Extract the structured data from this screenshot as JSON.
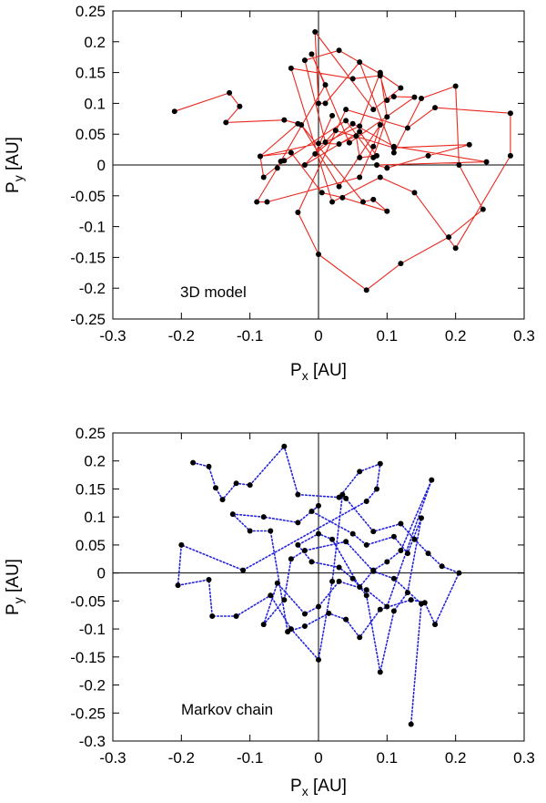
{
  "chart_data": [
    {
      "type": "line",
      "annotation": "3D model",
      "xlabel_main": "P",
      "xlabel_sub": "x",
      "xlabel_unit": " [AU]",
      "ylabel_main": "P",
      "ylabel_sub": "y",
      "ylabel_unit": " [AU]",
      "xlim": [
        -0.3,
        0.3
      ],
      "ylim": [
        -0.25,
        0.25
      ],
      "xticks": [
        "-0.3",
        "-0.2",
        "-0.1",
        "0",
        "0.1",
        "0.2",
        "0.3"
      ],
      "yticks": [
        "-0.25",
        "-0.2",
        "-0.15",
        "-0.1",
        "-0.05",
        "0",
        "0.05",
        "0.1",
        "0.15",
        "0.2",
        "0.25"
      ],
      "series": [
        {
          "name": "3D model",
          "line_color": "#e8281e",
          "line_style": "solid",
          "marker_color": "#000000",
          "x": [
            -0.21,
            -0.13,
            -0.115,
            -0.135,
            -0.05,
            -0.03,
            -0.085,
            -0.08,
            -0.05,
            0.04,
            0.08,
            0.1,
            0.09,
            0.06,
            0.01,
            -0.02,
            0.03,
            0.09,
            0.12,
            0.08,
            -0.005,
            0.0,
            0.01,
            0.06,
            0.11,
            0.15,
            0.2,
            0.205,
            0.24,
            0.19,
            0.12,
            0.07,
            0.0,
            -0.03,
            0.04,
            0.13,
            0.17,
            0.28,
            0.28,
            0.2,
            0.14,
            0.09,
            0.02,
            -0.04,
            0.05,
            0.09,
            0.1,
            0.11,
            0.14,
            0.045,
            -0.01,
            0.01,
            -0.055,
            -0.06,
            -0.09,
            -0.075,
            0.06,
            0.08,
            0.09,
            0.03,
            -0.025,
            0.065,
            0.08,
            0.1,
            0.035,
            0.005,
            -0.04,
            -0.085,
            0.0,
            0.03,
            0.055,
            0.06,
            0.085,
            0.06,
            -0.02,
            0.025,
            0.11,
            0.22,
            0.16,
            0.1,
            0.085,
            0.245,
            0.11,
            0.05,
            -0.005,
            0.02
          ],
          "y": [
            0.087,
            0.117,
            0.095,
            0.069,
            0.073,
            0.067,
            0.014,
            -0.02,
            0.007,
            0.072,
            0.012,
            0.078,
            0.15,
            0.063,
            0.037,
            0.17,
            0.186,
            0.148,
            0.125,
            0.09,
            0.216,
            0.1,
            0.1,
            0.167,
            0.02,
            0.108,
            0.128,
            0.0,
            -0.072,
            -0.117,
            -0.16,
            -0.203,
            -0.145,
            -0.077,
            0.09,
            0.06,
            0.093,
            0.084,
            0.015,
            -0.135,
            -0.045,
            -0.02,
            -0.06,
            0.157,
            0.14,
            0.145,
            0.105,
            0.111,
            0.11,
            0.036,
            0.18,
            0.13,
            0.006,
            -0.005,
            -0.06,
            -0.06,
            -0.02,
            0.03,
            0.065,
            -0.035,
            0.065,
            -0.06,
            -0.056,
            -0.075,
            -0.053,
            -0.045,
            0.02,
            0.014,
            0.035,
            0.034,
            0.047,
            0.012,
            0.015,
            0.054,
            0.0,
            0.056,
            0.028,
            0.033,
            0.015,
            -0.005,
            0.0,
            0.005,
            0.03,
            0.067,
            0.018,
            0.08
          ]
        }
      ]
    },
    {
      "type": "line",
      "annotation": "Markov chain",
      "xlabel_main": "P",
      "xlabel_sub": "x",
      "xlabel_unit": " [AU]",
      "ylabel_main": "P",
      "ylabel_sub": "y",
      "ylabel_unit": " [AU]",
      "xlim": [
        -0.3,
        0.3
      ],
      "ylim": [
        -0.3,
        0.25
      ],
      "xticks": [
        "-0.3",
        "-0.2",
        "-0.1",
        "0",
        "0.1",
        "0.2",
        "0.3"
      ],
      "yticks": [
        "-0.3",
        "-0.25",
        "-0.2",
        "-0.15",
        "-0.1",
        "-0.05",
        "0",
        "0.05",
        "0.1",
        "0.15",
        "0.2",
        "0.25"
      ],
      "series": [
        {
          "name": "Markov chain",
          "line_color": "#2222dd",
          "line_style": "dotted",
          "marker_color": "#000000",
          "x": [
            -0.183,
            -0.16,
            -0.15,
            -0.14,
            -0.12,
            -0.1,
            -0.05,
            -0.03,
            0.03,
            0.06,
            0.09,
            0.085,
            0.07,
            -0.11,
            -0.2,
            -0.205,
            -0.16,
            -0.155,
            -0.12,
            -0.07,
            -0.04,
            0.0,
            0.02,
            0.035,
            0.04,
            0.08,
            0.12,
            0.14,
            0.16,
            0.18,
            0.205,
            0.17,
            0.155,
            0.135,
            0.09,
            0.06,
            0.04,
            0.015,
            -0.02,
            -0.045,
            -0.07,
            -0.1,
            -0.125,
            -0.08,
            -0.03,
            0.0,
            -0.01,
            0.05,
            0.07,
            0.11,
            0.13,
            0.15,
            0.13,
            0.11,
            0.09,
            0.07,
            0.05,
            0.03,
            -0.01,
            -0.03,
            0.0,
            0.02,
            0.06,
            0.08,
            0.1,
            0.12,
            0.165,
            0.1,
            0.07,
            0.03,
            0.0,
            -0.02,
            -0.06,
            -0.08,
            -0.05,
            -0.04,
            -0.02,
            0.04,
            0.08,
            0.11,
            0.15,
            0.135
          ],
          "y": [
            0.197,
            0.19,
            0.152,
            0.131,
            0.16,
            0.157,
            0.226,
            0.14,
            0.135,
            0.181,
            0.195,
            0.15,
            0.128,
            0.005,
            0.05,
            -0.022,
            -0.012,
            -0.077,
            -0.077,
            -0.04,
            -0.1,
            -0.155,
            -0.015,
            0.14,
            0.133,
            0.074,
            0.088,
            0.06,
            0.035,
            0.012,
            0.0,
            -0.092,
            -0.053,
            -0.048,
            -0.065,
            -0.115,
            -0.083,
            -0.072,
            -0.095,
            -0.105,
            0.075,
            0.075,
            0.105,
            0.1,
            0.09,
            0.12,
            0.11,
            0.07,
            0.05,
            0.065,
            0.035,
            0.098,
            -0.035,
            -0.068,
            -0.177,
            -0.04,
            -0.01,
            0.01,
            0.02,
            0.05,
            0.07,
            0.06,
            -0.025,
            0.005,
            0.02,
            0.04,
            0.166,
            -0.06,
            -0.03,
            -0.015,
            -0.06,
            -0.073,
            -0.018,
            -0.092,
            -0.048,
            0.025,
            0.04,
            0.056,
            0.003,
            -0.01,
            -0.055,
            -0.27
          ]
        }
      ]
    }
  ]
}
